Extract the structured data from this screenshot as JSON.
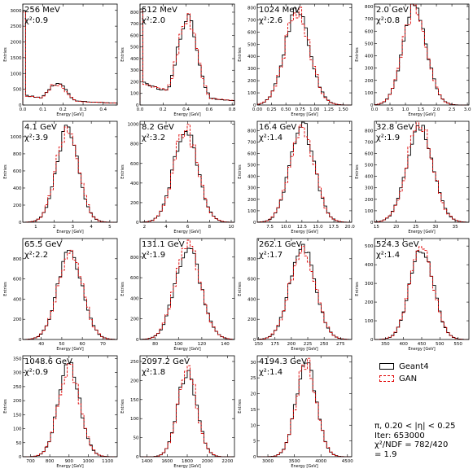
{
  "legend": {
    "geant": "Geant4",
    "gan": "GAN"
  },
  "summary": {
    "line1": "π, 0.20 < |η| < 0.25",
    "line2": "Iter: 653000",
    "line3": "χ²/NDF = 782/420",
    "line4": "= 1.9"
  },
  "colors": {
    "geant": "#000000",
    "gan": "#e00000"
  },
  "chart_data": [
    {
      "type": "histogram",
      "title": "256 MeV",
      "chi2": "χ²:0.9",
      "xlabel": "Energy [GeV]",
      "ylabel": "Entries",
      "xlim": [
        0,
        0.47
      ],
      "ylim": [
        0,
        3200
      ],
      "xticks": [
        "0.0",
        "0.1",
        "0.2",
        "0.3",
        "0.4"
      ],
      "yticks": [
        "0",
        "500",
        "1000",
        "1500",
        "2000",
        "2500",
        "3000"
      ],
      "shape": "spike",
      "peak_x": 0.17,
      "peak_y": 680,
      "sigma": 0.05,
      "spike_y": 3100,
      "floor_y": 320
    },
    {
      "type": "histogram",
      "title": "512 MeV",
      "chi2": "χ²:2.0",
      "xlabel": "Energy [GeV]",
      "ylabel": "Entries",
      "xlim": [
        0,
        0.82
      ],
      "ylim": [
        0,
        870
      ],
      "xticks": [
        "0.0",
        "0.2",
        "0.4",
        "0.6",
        "0.8"
      ],
      "yticks": [
        "0",
        "100",
        "200",
        "300",
        "400",
        "500",
        "600",
        "700",
        "800"
      ],
      "shape": "spike",
      "peak_x": 0.41,
      "peak_y": 740,
      "sigma": 0.09,
      "spike_y": 850,
      "floor_y": 200
    },
    {
      "type": "histogram",
      "title": "1024 MeV",
      "chi2": "χ²:2.6",
      "xlabel": "Energy [GeV]",
      "ylabel": "Entries",
      "xlim": [
        0,
        1.65
      ],
      "ylim": [
        0,
        830
      ],
      "xticks": [
        "0.00",
        "0.25",
        "0.50",
        "0.75",
        "1.00",
        "1.25",
        "1.50"
      ],
      "yticks": [
        "0",
        "100",
        "200",
        "300",
        "400",
        "500",
        "600",
        "700",
        "800"
      ],
      "shape": "gauss",
      "peak_x": 0.7,
      "peak_y": 770,
      "sigma": 0.22,
      "floor_y": 0
    },
    {
      "type": "histogram",
      "title": "2.0 GeV",
      "chi2": "χ²:0.8",
      "xlabel": "Energy [GeV]",
      "ylabel": "Entries",
      "xlim": [
        0,
        3.05
      ],
      "ylim": [
        0,
        820
      ],
      "xticks": [
        "0.0",
        "0.5",
        "1.0",
        "1.5",
        "2.0",
        "2.5",
        "3.0"
      ],
      "yticks": [
        "0",
        "100",
        "200",
        "300",
        "400",
        "500",
        "600",
        "700",
        "800"
      ],
      "shape": "gauss",
      "peak_x": 1.3,
      "peak_y": 790,
      "sigma": 0.38,
      "floor_y": 0
    },
    {
      "type": "histogram",
      "title": "4.1 GeV",
      "chi2": "χ²:3.9",
      "xlabel": "Energy [GeV]",
      "ylabel": "Entries",
      "xlim": [
        0.3,
        5.4
      ],
      "ylim": [
        0,
        1180
      ],
      "xticks": [
        "1",
        "2",
        "3",
        "4",
        "5"
      ],
      "yticks": [
        "0",
        "200",
        "400",
        "600",
        "800",
        "1000"
      ],
      "shape": "gauss",
      "peak_x": 2.7,
      "peak_y": 1080,
      "sigma": 0.6,
      "floor_y": 0
    },
    {
      "type": "histogram",
      "title": "8.2 GeV",
      "chi2": "χ²:3.2",
      "xlabel": "Energy [GeV]",
      "ylabel": "Entries",
      "xlim": [
        1.6,
        10.3
      ],
      "ylim": [
        0,
        1030
      ],
      "xticks": [
        "2",
        "4",
        "6",
        "8",
        "10"
      ],
      "yticks": [
        "0",
        "200",
        "400",
        "600",
        "800",
        "1000"
      ],
      "shape": "gauss",
      "peak_x": 5.8,
      "peak_y": 960,
      "sigma": 1.1,
      "floor_y": 0
    },
    {
      "type": "histogram",
      "title": "16.4 GeV",
      "chi2": "χ²:1.4",
      "xlabel": "Energy [GeV]",
      "ylabel": "Entries",
      "xlim": [
        5.5,
        20.3
      ],
      "ylim": [
        0,
        880
      ],
      "xticks": [
        "7.5",
        "10.0",
        "12.5",
        "15.0",
        "17.5",
        "20.0"
      ],
      "yticks": [
        "0",
        "100",
        "200",
        "300",
        "400",
        "500",
        "600",
        "700",
        "800"
      ],
      "shape": "gauss",
      "peak_x": 12.5,
      "peak_y": 850,
      "sigma": 1.9,
      "floor_y": 0
    },
    {
      "type": "histogram",
      "title": "32.8 GeV",
      "chi2": "χ²:1.9",
      "xlabel": "Energy [GeV]",
      "ylabel": "Entries",
      "xlim": [
        14.5,
        38.5
      ],
      "ylim": [
        0,
        880
      ],
      "xticks": [
        "15",
        "20",
        "25",
        "30",
        "35"
      ],
      "yticks": [
        "0",
        "100",
        "200",
        "300",
        "400",
        "500",
        "600",
        "700",
        "800"
      ],
      "shape": "gauss",
      "peak_x": 26,
      "peak_y": 840,
      "sigma": 3.3,
      "floor_y": 0
    },
    {
      "type": "histogram",
      "title": "65.5 GeV",
      "chi2": "χ²:2.2",
      "xlabel": "Energy [GeV]",
      "ylabel": "Entries",
      "xlim": [
        31,
        77
      ],
      "ylim": [
        0,
        1000
      ],
      "xticks": [
        "40",
        "50",
        "60",
        "70"
      ],
      "yticks": [
        "0",
        "200",
        "400",
        "600",
        "800"
      ],
      "shape": "gauss",
      "peak_x": 54,
      "peak_y": 870,
      "sigma": 6,
      "floor_y": 0
    },
    {
      "type": "histogram",
      "title": "131.1 GeV",
      "chi2": "χ²:1.9",
      "xlabel": "Energy [GeV]",
      "ylabel": "Entries",
      "xlim": [
        67,
        148
      ],
      "ylim": [
        0,
        980
      ],
      "xticks": [
        "80",
        "100",
        "120",
        "140"
      ],
      "yticks": [
        "0",
        "200",
        "400",
        "600",
        "800"
      ],
      "shape": "gauss",
      "peak_x": 108,
      "peak_y": 900,
      "sigma": 11,
      "floor_y": 0
    },
    {
      "type": "histogram",
      "title": "262.1 GeV",
      "chi2": "χ²:1.7",
      "xlabel": "Energy [GeV]",
      "ylabel": "Entries",
      "xlim": [
        148,
        292
      ],
      "ylim": [
        0,
        1000
      ],
      "xticks": [
        "150",
        "175",
        "200",
        "225",
        "250",
        "275"
      ],
      "yticks": [
        "0",
        "200",
        "400",
        "600",
        "800"
      ],
      "shape": "gauss",
      "peak_x": 217,
      "peak_y": 930,
      "sigma": 19,
      "floor_y": 0
    },
    {
      "type": "histogram",
      "title": "524.3 GeV",
      "chi2": "χ²:1.4",
      "xlabel": "Energy [GeV]",
      "ylabel": "Entries",
      "xlim": [
        320,
        580
      ],
      "ylim": [
        0,
        540
      ],
      "xticks": [
        "350",
        "400",
        "450",
        "500",
        "550"
      ],
      "yticks": [
        "0",
        "100",
        "200",
        "300",
        "400",
        "500"
      ],
      "shape": "gauss",
      "peak_x": 450,
      "peak_y": 500,
      "sigma": 32,
      "floor_y": 0
    },
    {
      "type": "histogram",
      "title": "1048.6 GeV",
      "chi2": "χ²:0.9",
      "xlabel": "Energy [GeV]",
      "ylabel": "Entries",
      "xlim": [
        660,
        1150
      ],
      "ylim": [
        0,
        360
      ],
      "xticks": [
        "700",
        "800",
        "900",
        "1000",
        "1100"
      ],
      "yticks": [
        "0",
        "50",
        "100",
        "150",
        "200",
        "250",
        "300",
        "350"
      ],
      "shape": "gauss",
      "peak_x": 900,
      "peak_y": 330,
      "sigma": 55,
      "floor_y": 0
    },
    {
      "type": "histogram",
      "title": "2097.2 GeV",
      "chi2": "χ²:1.8",
      "xlabel": "Energy [GeV]",
      "ylabel": "Entries",
      "xlim": [
        1330,
        2270
      ],
      "ylim": [
        0,
        265
      ],
      "xticks": [
        "1400",
        "1600",
        "1800",
        "2000",
        "2200"
      ],
      "yticks": [
        "0",
        "50",
        "100",
        "150",
        "200",
        "250"
      ],
      "shape": "gauss",
      "peak_x": 1800,
      "peak_y": 225,
      "sigma": 95,
      "floor_y": 0
    },
    {
      "type": "histogram",
      "title": "4194.3 GeV",
      "chi2": "χ²:1.4",
      "xlabel": "Energy [GeV]",
      "ylabel": "Entries",
      "xlim": [
        2800,
        4580
      ],
      "ylim": [
        0,
        32
      ],
      "xticks": [
        "3000",
        "3500",
        "4000",
        "4500"
      ],
      "yticks": [
        "0",
        "5",
        "10",
        "15",
        "20",
        "25",
        "30"
      ],
      "shape": "gauss",
      "peak_x": 3720,
      "peak_y": 30,
      "sigma": 190,
      "floor_y": 0
    }
  ]
}
